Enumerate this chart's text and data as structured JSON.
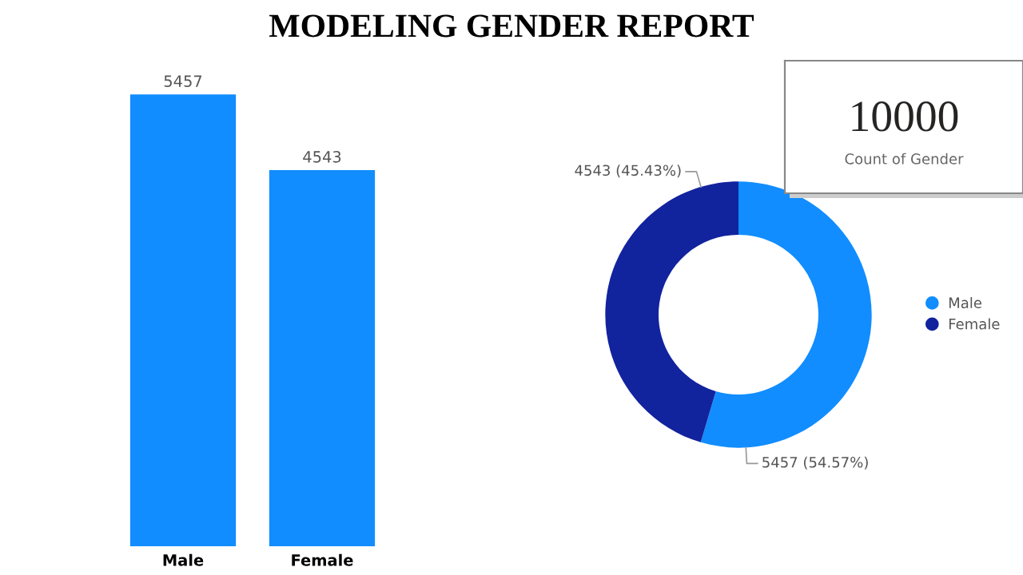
{
  "chart_data": [
    {
      "type": "bar",
      "title": "MODELING GENDER REPORT",
      "categories": [
        "Male",
        "Female"
      ],
      "values": [
        5457,
        4543
      ],
      "color": "#118dff",
      "data_labels": true,
      "tick_labels": "x",
      "grid": false
    },
    {
      "type": "donut",
      "categories": [
        "Male",
        "Female"
      ],
      "values": [
        5457,
        4543
      ],
      "colors": [
        "#118dff",
        "#12239e"
      ],
      "value_labels": [
        "5457 (54.57%)",
        "4543 (45.43%)"
      ],
      "legend": "right"
    },
    {
      "type": "other",
      "annotations": [
        "10000",
        "Count of Gender"
      ]
    }
  ]
}
